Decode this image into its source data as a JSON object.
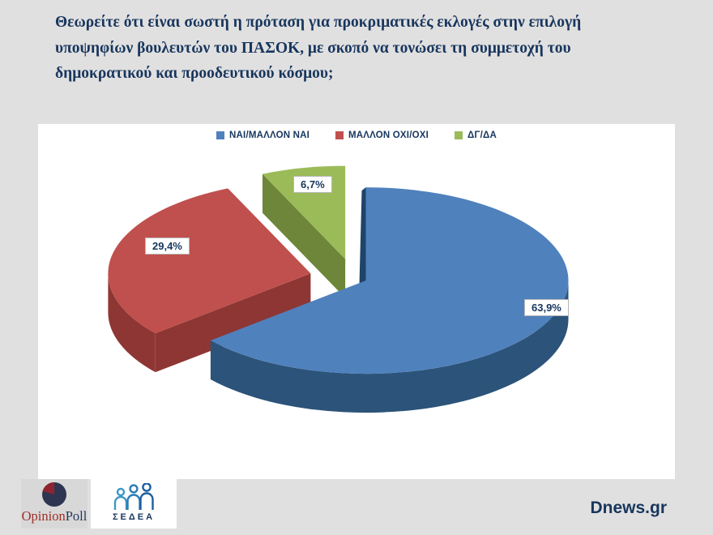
{
  "page": {
    "title": "Θεωρείτε ότι είναι σωστή η πρόταση για προκριματικές εκλογές στην επιλογή υποψηφίων βουλευτών του ΠΑΣΟΚ, με σκοπό να τονώσει τη συμμετοχή του δημοκρατικού και προοδευτικού κόσμου;",
    "source": "Dnews.gr"
  },
  "chart_data": {
    "type": "pie",
    "style": "3d-exploded",
    "title": "",
    "legend_position": "top-center",
    "categories": [
      "ΝΑΙ/ΜΑΛΛΟΝ ΝΑΙ",
      "ΜΑΛΛΟΝ ΟΧΙ/ΟΧΙ",
      "ΔΓ/ΔΑ"
    ],
    "values": [
      63.9,
      29.4,
      6.7
    ],
    "labels": [
      "63,9%",
      "29,4%",
      "6,7%"
    ],
    "colors": [
      "#4f81bd",
      "#c0504d",
      "#9bbb59"
    ],
    "side_colors": [
      "#2c5379",
      "#8e3634",
      "#6d8639"
    ],
    "edge_color": "#1e4469",
    "label_text_color": "#17365d"
  },
  "footer": {
    "opinionpoll": {
      "part1": "Opinion",
      "part2": "Poll"
    },
    "sedea_label": "ΣΕΔΕΑ"
  }
}
